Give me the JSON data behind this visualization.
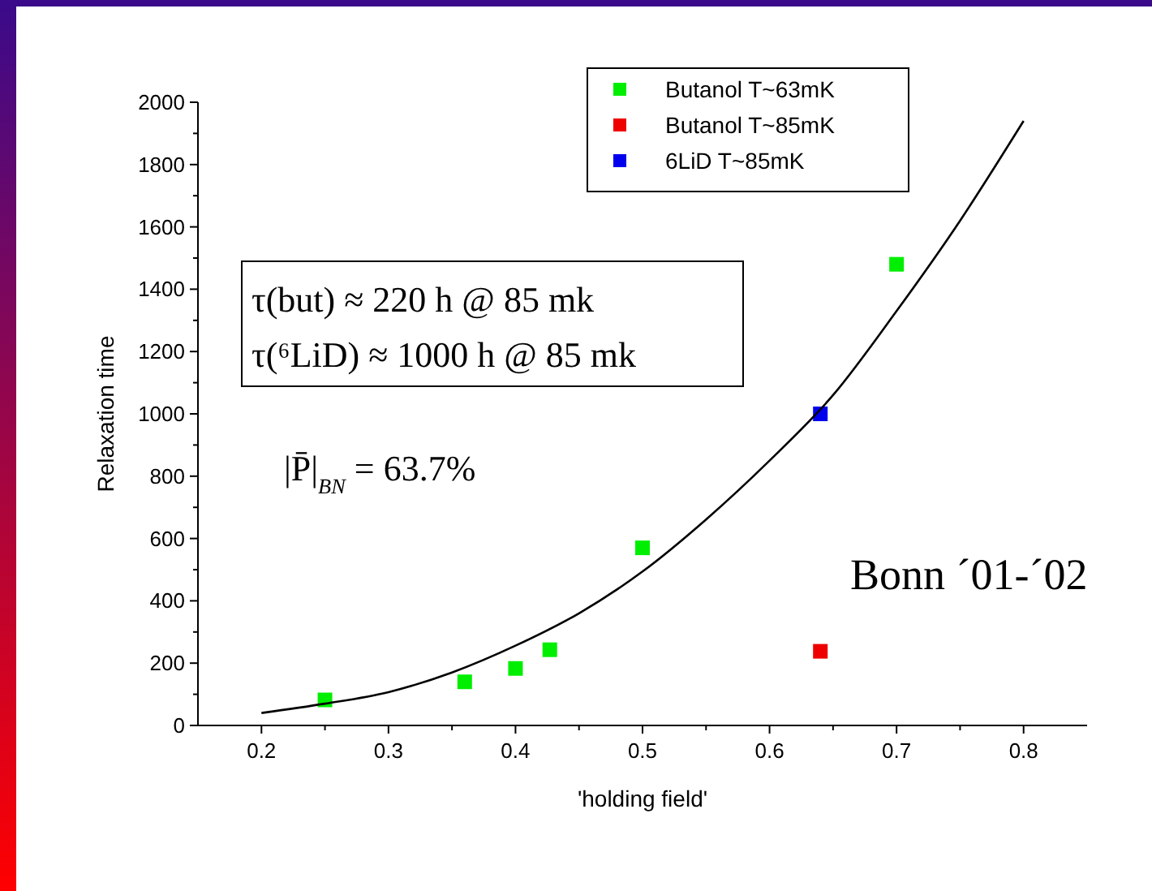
{
  "chart_data": {
    "type": "scatter",
    "xlabel": "'holding field'",
    "ylabel": "Relaxation time",
    "xlim": [
      0.15,
      0.85
    ],
    "ylim": [
      0,
      2000
    ],
    "xticks": [
      0.2,
      {
        "value": 0.25,
        "label": null
      },
      0.3,
      {
        "value": 0.35,
        "label": null
      },
      0.4,
      {
        "value": 0.45,
        "label": null
      },
      0.5,
      {
        "value": 0.55,
        "label": null
      },
      0.6,
      {
        "value": 0.65,
        "label": null
      },
      0.7,
      {
        "value": 0.75,
        "label": null
      },
      0.8
    ],
    "yticks": [
      0,
      {
        "value": 100,
        "label": null
      },
      200,
      {
        "value": 300,
        "label": null
      },
      400,
      {
        "value": 500,
        "label": null
      },
      600,
      {
        "value": 700,
        "label": null
      },
      800,
      {
        "value": 900,
        "label": null
      },
      1000,
      {
        "value": 1100,
        "label": null
      },
      1200,
      {
        "value": 1300,
        "label": null
      },
      1400,
      {
        "value": 1500,
        "label": null
      },
      1600,
      {
        "value": 1700,
        "label": null
      },
      1800,
      {
        "value": 1900,
        "label": null
      },
      2000
    ],
    "marker": "square",
    "grid": false,
    "legend": "top right",
    "series": [
      {
        "name": "Butanol T~63mK",
        "color": "#00ee00",
        "x": [
          0.25,
          0.36,
          0.4,
          0.427,
          0.5,
          0.7
        ],
        "values": [
          82,
          140,
          183,
          243,
          570,
          1480
        ]
      },
      {
        "name": "Butanol T~85mK",
        "color": "#ee0000",
        "x": [
          0.64
        ],
        "values": [
          238
        ]
      },
      {
        "name": "6LiD T~85mK",
        "color": "#0000ee",
        "x": [
          0.64
        ],
        "values": [
          1000
        ]
      },
      {
        "type": "line",
        "color": "#000000",
        "marker": "none",
        "x": [
          0.2,
          0.25,
          0.3,
          0.35,
          0.4,
          0.45,
          0.5,
          0.55,
          0.6,
          0.65,
          0.7,
          0.75,
          0.8
        ],
        "values": [
          40,
          70,
          107,
          170,
          256,
          360,
          494,
          661,
          850,
          1060,
          1330,
          1620,
          1940
        ]
      }
    ],
    "annotations": [
      "τ(but) ≈ 220 h @ 85 mk",
      "τ(⁶LiD) ≈ 1000 h @ 85 mk",
      "|P̄|$_{BN}$ = 63.7%",
      "Bonn ´01-´02"
    ]
  }
}
